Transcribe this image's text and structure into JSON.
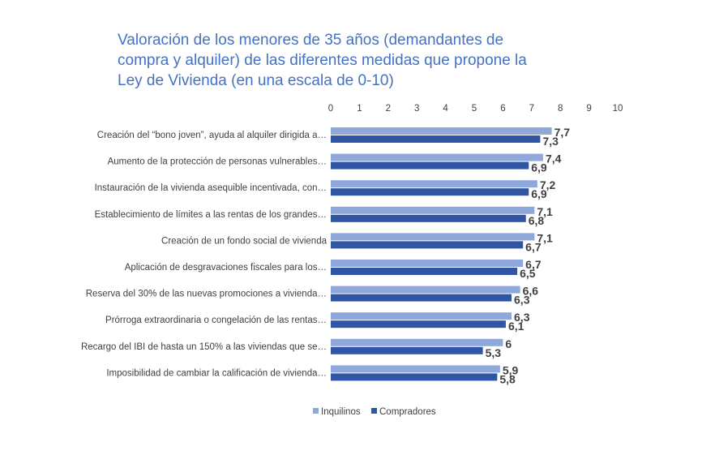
{
  "chart_data": {
    "type": "bar",
    "orientation": "horizontal",
    "title_lines": [
      "Valoración de los menores de 35 años (demandantes de",
      "compra y alquiler) de las diferentes medidas que propone la",
      "Ley de Vivienda (en una escala de 0-10)"
    ],
    "xlabel": "",
    "ylabel": "",
    "xlim": [
      0,
      10
    ],
    "x_ticks": [
      "0",
      "1",
      "2",
      "3",
      "4",
      "5",
      "6",
      "7",
      "8",
      "9",
      "10"
    ],
    "x_axis_position": "top",
    "grid": false,
    "legend_position": "bottom",
    "categories": [
      "Creación del “bono joven”, ayuda al alquiler dirigida a…",
      "Aumento de la protección de personas vulnerables…",
      "Instauración de la vivienda asequible incentivada, con…",
      "Establecimiento de límites a las rentas de los grandes…",
      "Creación de un fondo social de vivienda",
      "Aplicación de desgravaciones fiscales para los…",
      "Reserva del 30% de las nuevas promociones a vivienda…",
      "Prórroga extraordinaria o congelación de las rentas…",
      "Recargo del IBI de hasta un 150% a las viviendas que se…",
      "Imposibilidad de cambiar la calificación de vivienda…"
    ],
    "series": [
      {
        "name": "Inquilinos",
        "color": "#8fa8dc",
        "values": [
          7.7,
          7.4,
          7.2,
          7.1,
          7.1,
          6.7,
          6.6,
          6.3,
          6,
          5.9
        ],
        "labels": [
          "7,7",
          "7,4",
          "7,2",
          "7,1",
          "7,1",
          "6,7",
          "6,6",
          "6,3",
          "6",
          "5,9"
        ]
      },
      {
        "name": "Compradores",
        "color": "#2f55a4",
        "values": [
          7.3,
          6.9,
          6.9,
          6.8,
          6.7,
          6.5,
          6.3,
          6.1,
          5.3,
          5.8
        ],
        "labels": [
          "7,3",
          "6,9",
          "6,9",
          "6,8",
          "6,7",
          "6,5",
          "6,3",
          "6,1",
          "5,3",
          "5,8"
        ]
      }
    ]
  }
}
